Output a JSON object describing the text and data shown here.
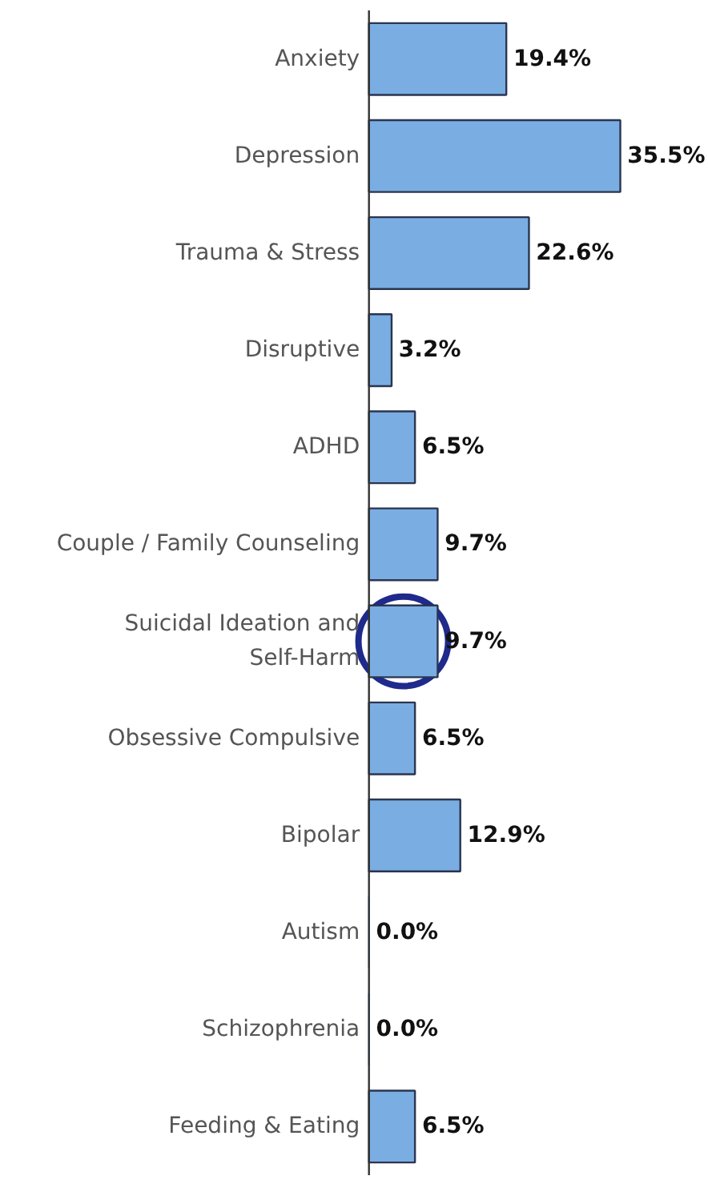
{
  "chart_data": {
    "type": "bar",
    "orientation": "horizontal",
    "categories": [
      "Anxiety",
      "Depression",
      "Trauma & Stress",
      "Disruptive",
      "ADHD",
      "Couple / Family Counseling",
      "Suicidal Ideation and\nSelf-Harm",
      "Obsessive Compulsive",
      "Bipolar",
      "Autism",
      "Schizophrenia",
      "Feeding & Eating"
    ],
    "values": [
      19.4,
      35.5,
      22.6,
      3.2,
      6.5,
      9.7,
      9.7,
      6.5,
      12.9,
      0.0,
      0.0,
      6.5
    ],
    "value_labels": [
      "19.4%",
      "35.5%",
      "22.6%",
      "3.2%",
      "6.5%",
      "9.7%",
      "9.7%",
      "6.5%",
      "12.9%",
      "0.0%",
      "0.0%",
      "6.5%"
    ],
    "color": "#7aaee3",
    "grid": false
  }
}
